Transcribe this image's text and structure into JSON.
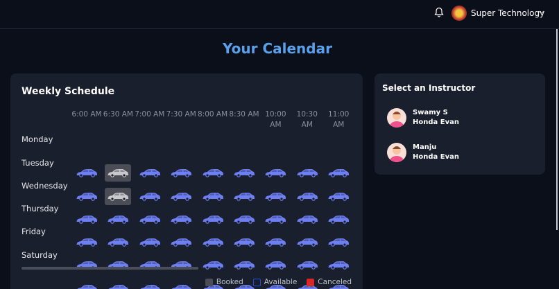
{
  "header": {
    "user": "Super Technology"
  },
  "title": "Your Calendar",
  "schedule": {
    "title": "Weekly Schedule",
    "times": [
      "6:00 AM",
      "6:30 AM",
      "7:00 AM",
      "7:30 AM",
      "8:00 AM",
      "8:30 AM",
      "10:00 AM",
      "10:30 AM",
      "11:00 AM"
    ],
    "days": [
      {
        "name": "Monday",
        "slots": [
          "Available",
          "Booked",
          "Available",
          "Available",
          "Available",
          "Available",
          "Available",
          "Available",
          "Available"
        ]
      },
      {
        "name": "Tuesday",
        "slots": [
          "Available",
          "Booked",
          "Available",
          "Available",
          "Available",
          "Available",
          "Available",
          "Available",
          "Available"
        ]
      },
      {
        "name": "Wednesday",
        "slots": [
          "Available",
          "Available",
          "Available",
          "Available",
          "Available",
          "Available",
          "Available",
          "Available",
          "Available"
        ]
      },
      {
        "name": "Thursday",
        "slots": [
          "Available",
          "Available",
          "Available",
          "Available",
          "Available",
          "Available",
          "Available",
          "Available",
          "Available"
        ]
      },
      {
        "name": "Friday",
        "slots": [
          "Available",
          "Available",
          "Available",
          "Available",
          "Available",
          "Available",
          "Available",
          "Available",
          "Available"
        ]
      },
      {
        "name": "Saturday",
        "slots": [
          "Available",
          "Available",
          "Available",
          "Available",
          "Available",
          "Available",
          "Available",
          "Available",
          "Available"
        ]
      }
    ],
    "legend": [
      {
        "label": "Booked",
        "color": "#4a4d55"
      },
      {
        "label": "Available",
        "color": "#1d4ed8"
      },
      {
        "label": "Canceled",
        "color": "#dc2626"
      }
    ]
  },
  "instructors": {
    "title": "Select an Instructor",
    "items": [
      {
        "name": "Swamy S",
        "car": "Honda Evan"
      },
      {
        "name": "Manju",
        "car": "Honda Evan"
      }
    ]
  }
}
